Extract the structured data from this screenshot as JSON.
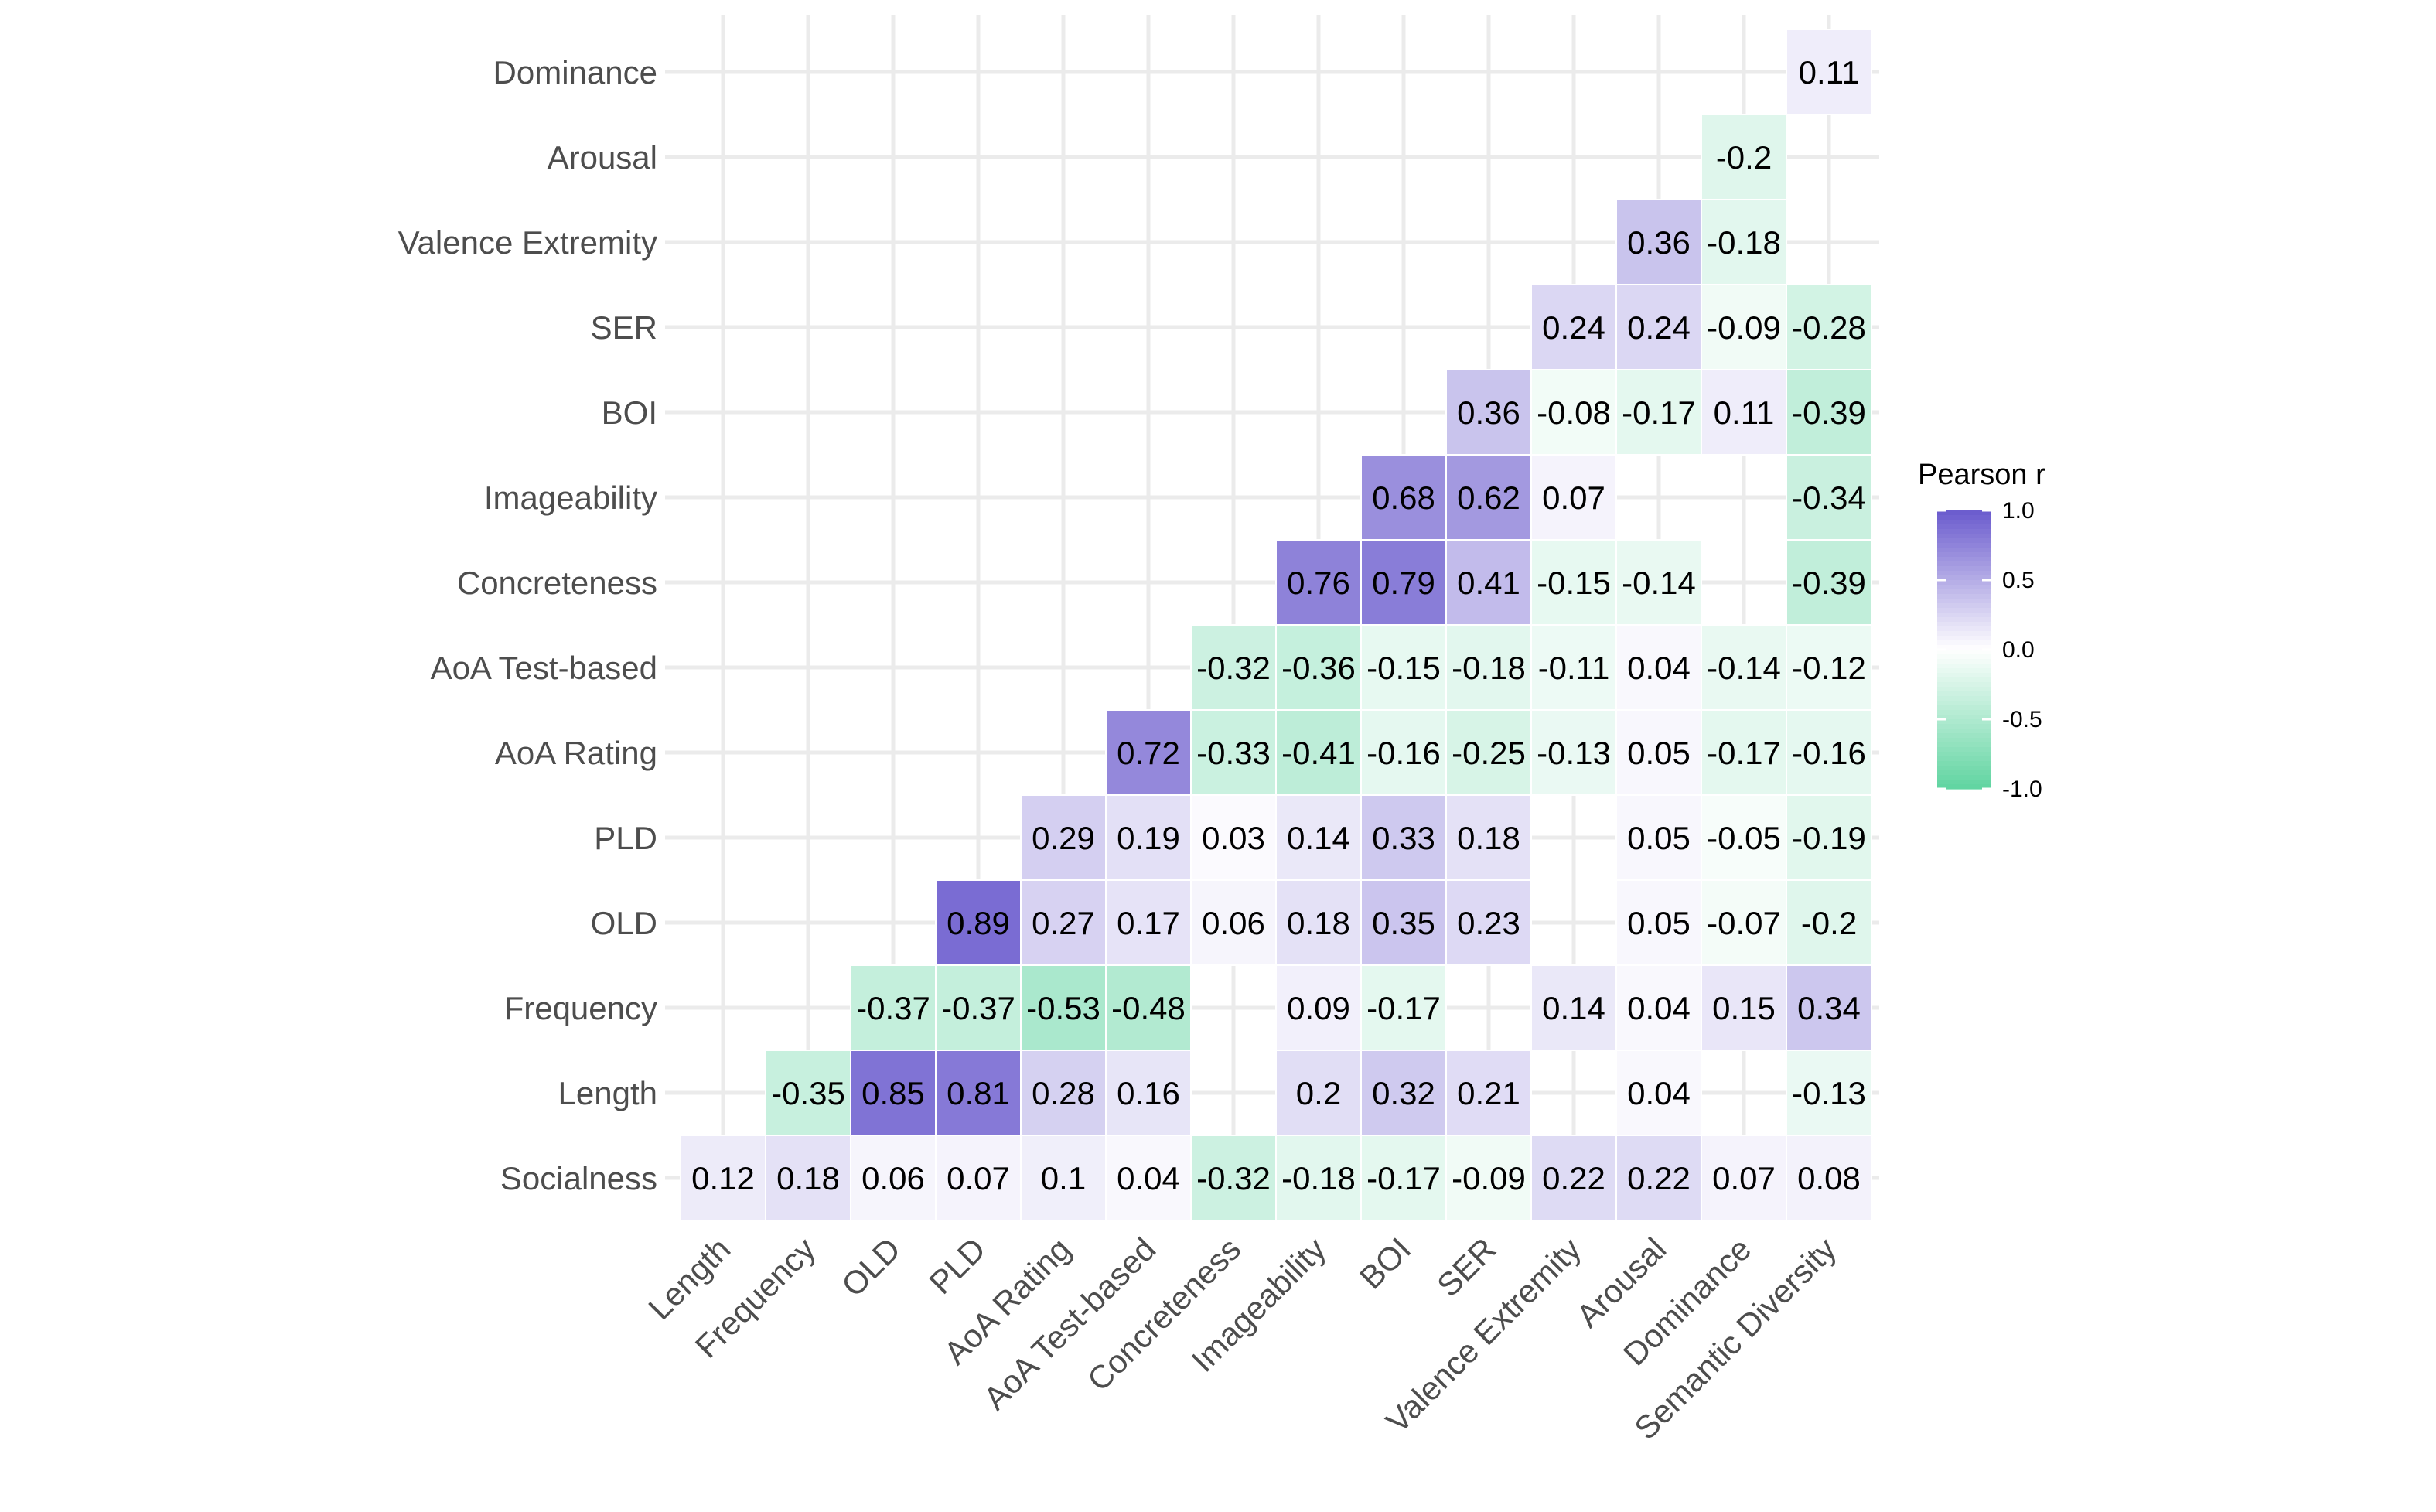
{
  "chart_data": {
    "type": "heatmap",
    "title": "",
    "xlabel": "",
    "ylabel": "",
    "variables": [
      "Socialness",
      "Length",
      "Frequency",
      "OLD",
      "PLD",
      "AoA Rating",
      "AoA Test-based",
      "Concreteness",
      "Imageability",
      "BOI",
      "SER",
      "Valence Extremity",
      "Arousal",
      "Dominance"
    ],
    "x_categories": [
      "Length",
      "Frequency",
      "OLD",
      "PLD",
      "AoA Rating",
      "AoA Test-based",
      "Concreteness",
      "Imageability",
      "BOI",
      "SER",
      "Valence Extremity",
      "Arousal",
      "Dominance",
      "Semantic Diversity"
    ],
    "cells": [
      {
        "x": "Length",
        "y": "Socialness",
        "value": 0.12
      },
      {
        "x": "Frequency",
        "y": "Socialness",
        "value": 0.18
      },
      {
        "x": "OLD",
        "y": "Socialness",
        "value": 0.06
      },
      {
        "x": "PLD",
        "y": "Socialness",
        "value": 0.07
      },
      {
        "x": "AoA Rating",
        "y": "Socialness",
        "value": 0.1
      },
      {
        "x": "AoA Test-based",
        "y": "Socialness",
        "value": 0.04
      },
      {
        "x": "Concreteness",
        "y": "Socialness",
        "value": -0.32
      },
      {
        "x": "Imageability",
        "y": "Socialness",
        "value": -0.18
      },
      {
        "x": "BOI",
        "y": "Socialness",
        "value": -0.17
      },
      {
        "x": "SER",
        "y": "Socialness",
        "value": -0.09
      },
      {
        "x": "Valence Extremity",
        "y": "Socialness",
        "value": 0.22
      },
      {
        "x": "Arousal",
        "y": "Socialness",
        "value": 0.22
      },
      {
        "x": "Dominance",
        "y": "Socialness",
        "value": 0.07
      },
      {
        "x": "Semantic Diversity",
        "y": "Socialness",
        "value": 0.08
      },
      {
        "x": "Frequency",
        "y": "Length",
        "value": -0.35
      },
      {
        "x": "OLD",
        "y": "Length",
        "value": 0.85
      },
      {
        "x": "PLD",
        "y": "Length",
        "value": 0.81
      },
      {
        "x": "AoA Rating",
        "y": "Length",
        "value": 0.28
      },
      {
        "x": "AoA Test-based",
        "y": "Length",
        "value": 0.16
      },
      {
        "x": "Imageability",
        "y": "Length",
        "value": 0.2
      },
      {
        "x": "BOI",
        "y": "Length",
        "value": 0.32
      },
      {
        "x": "SER",
        "y": "Length",
        "value": 0.21
      },
      {
        "x": "Arousal",
        "y": "Length",
        "value": 0.04
      },
      {
        "x": "Semantic Diversity",
        "y": "Length",
        "value": -0.13
      },
      {
        "x": "OLD",
        "y": "Frequency",
        "value": -0.37
      },
      {
        "x": "PLD",
        "y": "Frequency",
        "value": -0.37
      },
      {
        "x": "AoA Rating",
        "y": "Frequency",
        "value": -0.53
      },
      {
        "x": "AoA Test-based",
        "y": "Frequency",
        "value": -0.48
      },
      {
        "x": "Imageability",
        "y": "Frequency",
        "value": 0.09
      },
      {
        "x": "BOI",
        "y": "Frequency",
        "value": -0.17
      },
      {
        "x": "Valence Extremity",
        "y": "Frequency",
        "value": 0.14
      },
      {
        "x": "Arousal",
        "y": "Frequency",
        "value": 0.04
      },
      {
        "x": "Dominance",
        "y": "Frequency",
        "value": 0.15
      },
      {
        "x": "Semantic Diversity",
        "y": "Frequency",
        "value": 0.34
      },
      {
        "x": "PLD",
        "y": "OLD",
        "value": 0.89
      },
      {
        "x": "AoA Rating",
        "y": "OLD",
        "value": 0.27
      },
      {
        "x": "AoA Test-based",
        "y": "OLD",
        "value": 0.17
      },
      {
        "x": "Concreteness",
        "y": "OLD",
        "value": 0.06
      },
      {
        "x": "Imageability",
        "y": "OLD",
        "value": 0.18
      },
      {
        "x": "BOI",
        "y": "OLD",
        "value": 0.35
      },
      {
        "x": "SER",
        "y": "OLD",
        "value": 0.23
      },
      {
        "x": "Arousal",
        "y": "OLD",
        "value": 0.05
      },
      {
        "x": "Dominance",
        "y": "OLD",
        "value": -0.07
      },
      {
        "x": "Semantic Diversity",
        "y": "OLD",
        "value": -0.2
      },
      {
        "x": "AoA Rating",
        "y": "PLD",
        "value": 0.29
      },
      {
        "x": "AoA Test-based",
        "y": "PLD",
        "value": 0.19
      },
      {
        "x": "Concreteness",
        "y": "PLD",
        "value": 0.03
      },
      {
        "x": "Imageability",
        "y": "PLD",
        "value": 0.14
      },
      {
        "x": "BOI",
        "y": "PLD",
        "value": 0.33
      },
      {
        "x": "SER",
        "y": "PLD",
        "value": 0.18
      },
      {
        "x": "Arousal",
        "y": "PLD",
        "value": 0.05
      },
      {
        "x": "Dominance",
        "y": "PLD",
        "value": -0.05
      },
      {
        "x": "Semantic Diversity",
        "y": "PLD",
        "value": -0.19
      },
      {
        "x": "AoA Test-based",
        "y": "AoA Rating",
        "value": 0.72
      },
      {
        "x": "Concreteness",
        "y": "AoA Rating",
        "value": -0.33
      },
      {
        "x": "Imageability",
        "y": "AoA Rating",
        "value": -0.41
      },
      {
        "x": "BOI",
        "y": "AoA Rating",
        "value": -0.16
      },
      {
        "x": "SER",
        "y": "AoA Rating",
        "value": -0.25
      },
      {
        "x": "Valence Extremity",
        "y": "AoA Rating",
        "value": -0.13
      },
      {
        "x": "Arousal",
        "y": "AoA Rating",
        "value": 0.05
      },
      {
        "x": "Dominance",
        "y": "AoA Rating",
        "value": -0.17
      },
      {
        "x": "Semantic Diversity",
        "y": "AoA Rating",
        "value": -0.16
      },
      {
        "x": "Concreteness",
        "y": "AoA Test-based",
        "value": -0.32
      },
      {
        "x": "Imageability",
        "y": "AoA Test-based",
        "value": -0.36
      },
      {
        "x": "BOI",
        "y": "AoA Test-based",
        "value": -0.15
      },
      {
        "x": "SER",
        "y": "AoA Test-based",
        "value": -0.18
      },
      {
        "x": "Valence Extremity",
        "y": "AoA Test-based",
        "value": -0.11
      },
      {
        "x": "Arousal",
        "y": "AoA Test-based",
        "value": 0.04
      },
      {
        "x": "Dominance",
        "y": "AoA Test-based",
        "value": -0.14
      },
      {
        "x": "Semantic Diversity",
        "y": "AoA Test-based",
        "value": -0.12
      },
      {
        "x": "Imageability",
        "y": "Concreteness",
        "value": 0.76
      },
      {
        "x": "BOI",
        "y": "Concreteness",
        "value": 0.79
      },
      {
        "x": "SER",
        "y": "Concreteness",
        "value": 0.41
      },
      {
        "x": "Valence Extremity",
        "y": "Concreteness",
        "value": -0.15
      },
      {
        "x": "Arousal",
        "y": "Concreteness",
        "value": -0.14
      },
      {
        "x": "Semantic Diversity",
        "y": "Concreteness",
        "value": -0.39
      },
      {
        "x": "BOI",
        "y": "Imageability",
        "value": 0.68
      },
      {
        "x": "SER",
        "y": "Imageability",
        "value": 0.62
      },
      {
        "x": "Valence Extremity",
        "y": "Imageability",
        "value": 0.07
      },
      {
        "x": "Semantic Diversity",
        "y": "Imageability",
        "value": -0.34
      },
      {
        "x": "SER",
        "y": "BOI",
        "value": 0.36
      },
      {
        "x": "Valence Extremity",
        "y": "BOI",
        "value": -0.08
      },
      {
        "x": "Arousal",
        "y": "BOI",
        "value": -0.17
      },
      {
        "x": "Dominance",
        "y": "BOI",
        "value": 0.11
      },
      {
        "x": "Semantic Diversity",
        "y": "BOI",
        "value": -0.39
      },
      {
        "x": "Valence Extremity",
        "y": "SER",
        "value": 0.24
      },
      {
        "x": "Arousal",
        "y": "SER",
        "value": 0.24
      },
      {
        "x": "Dominance",
        "y": "SER",
        "value": -0.09
      },
      {
        "x": "Semantic Diversity",
        "y": "SER",
        "value": -0.28
      },
      {
        "x": "Arousal",
        "y": "Valence Extremity",
        "value": 0.36
      },
      {
        "x": "Dominance",
        "y": "Valence Extremity",
        "value": -0.18
      },
      {
        "x": "Dominance",
        "y": "Arousal",
        "value": -0.2
      },
      {
        "x": "Semantic Diversity",
        "y": "Dominance",
        "value": 0.11
      }
    ],
    "color_scale": {
      "low": "#5fd4a0",
      "mid": "#ffffff",
      "high": "#6a5acd",
      "limits": [
        -1,
        1
      ]
    },
    "legend": {
      "title": "Pearson r",
      "ticks": [
        "1.0",
        "0.5",
        "0.0",
        "-0.5",
        "-1.0"
      ],
      "placement": "right"
    },
    "grid": true
  }
}
